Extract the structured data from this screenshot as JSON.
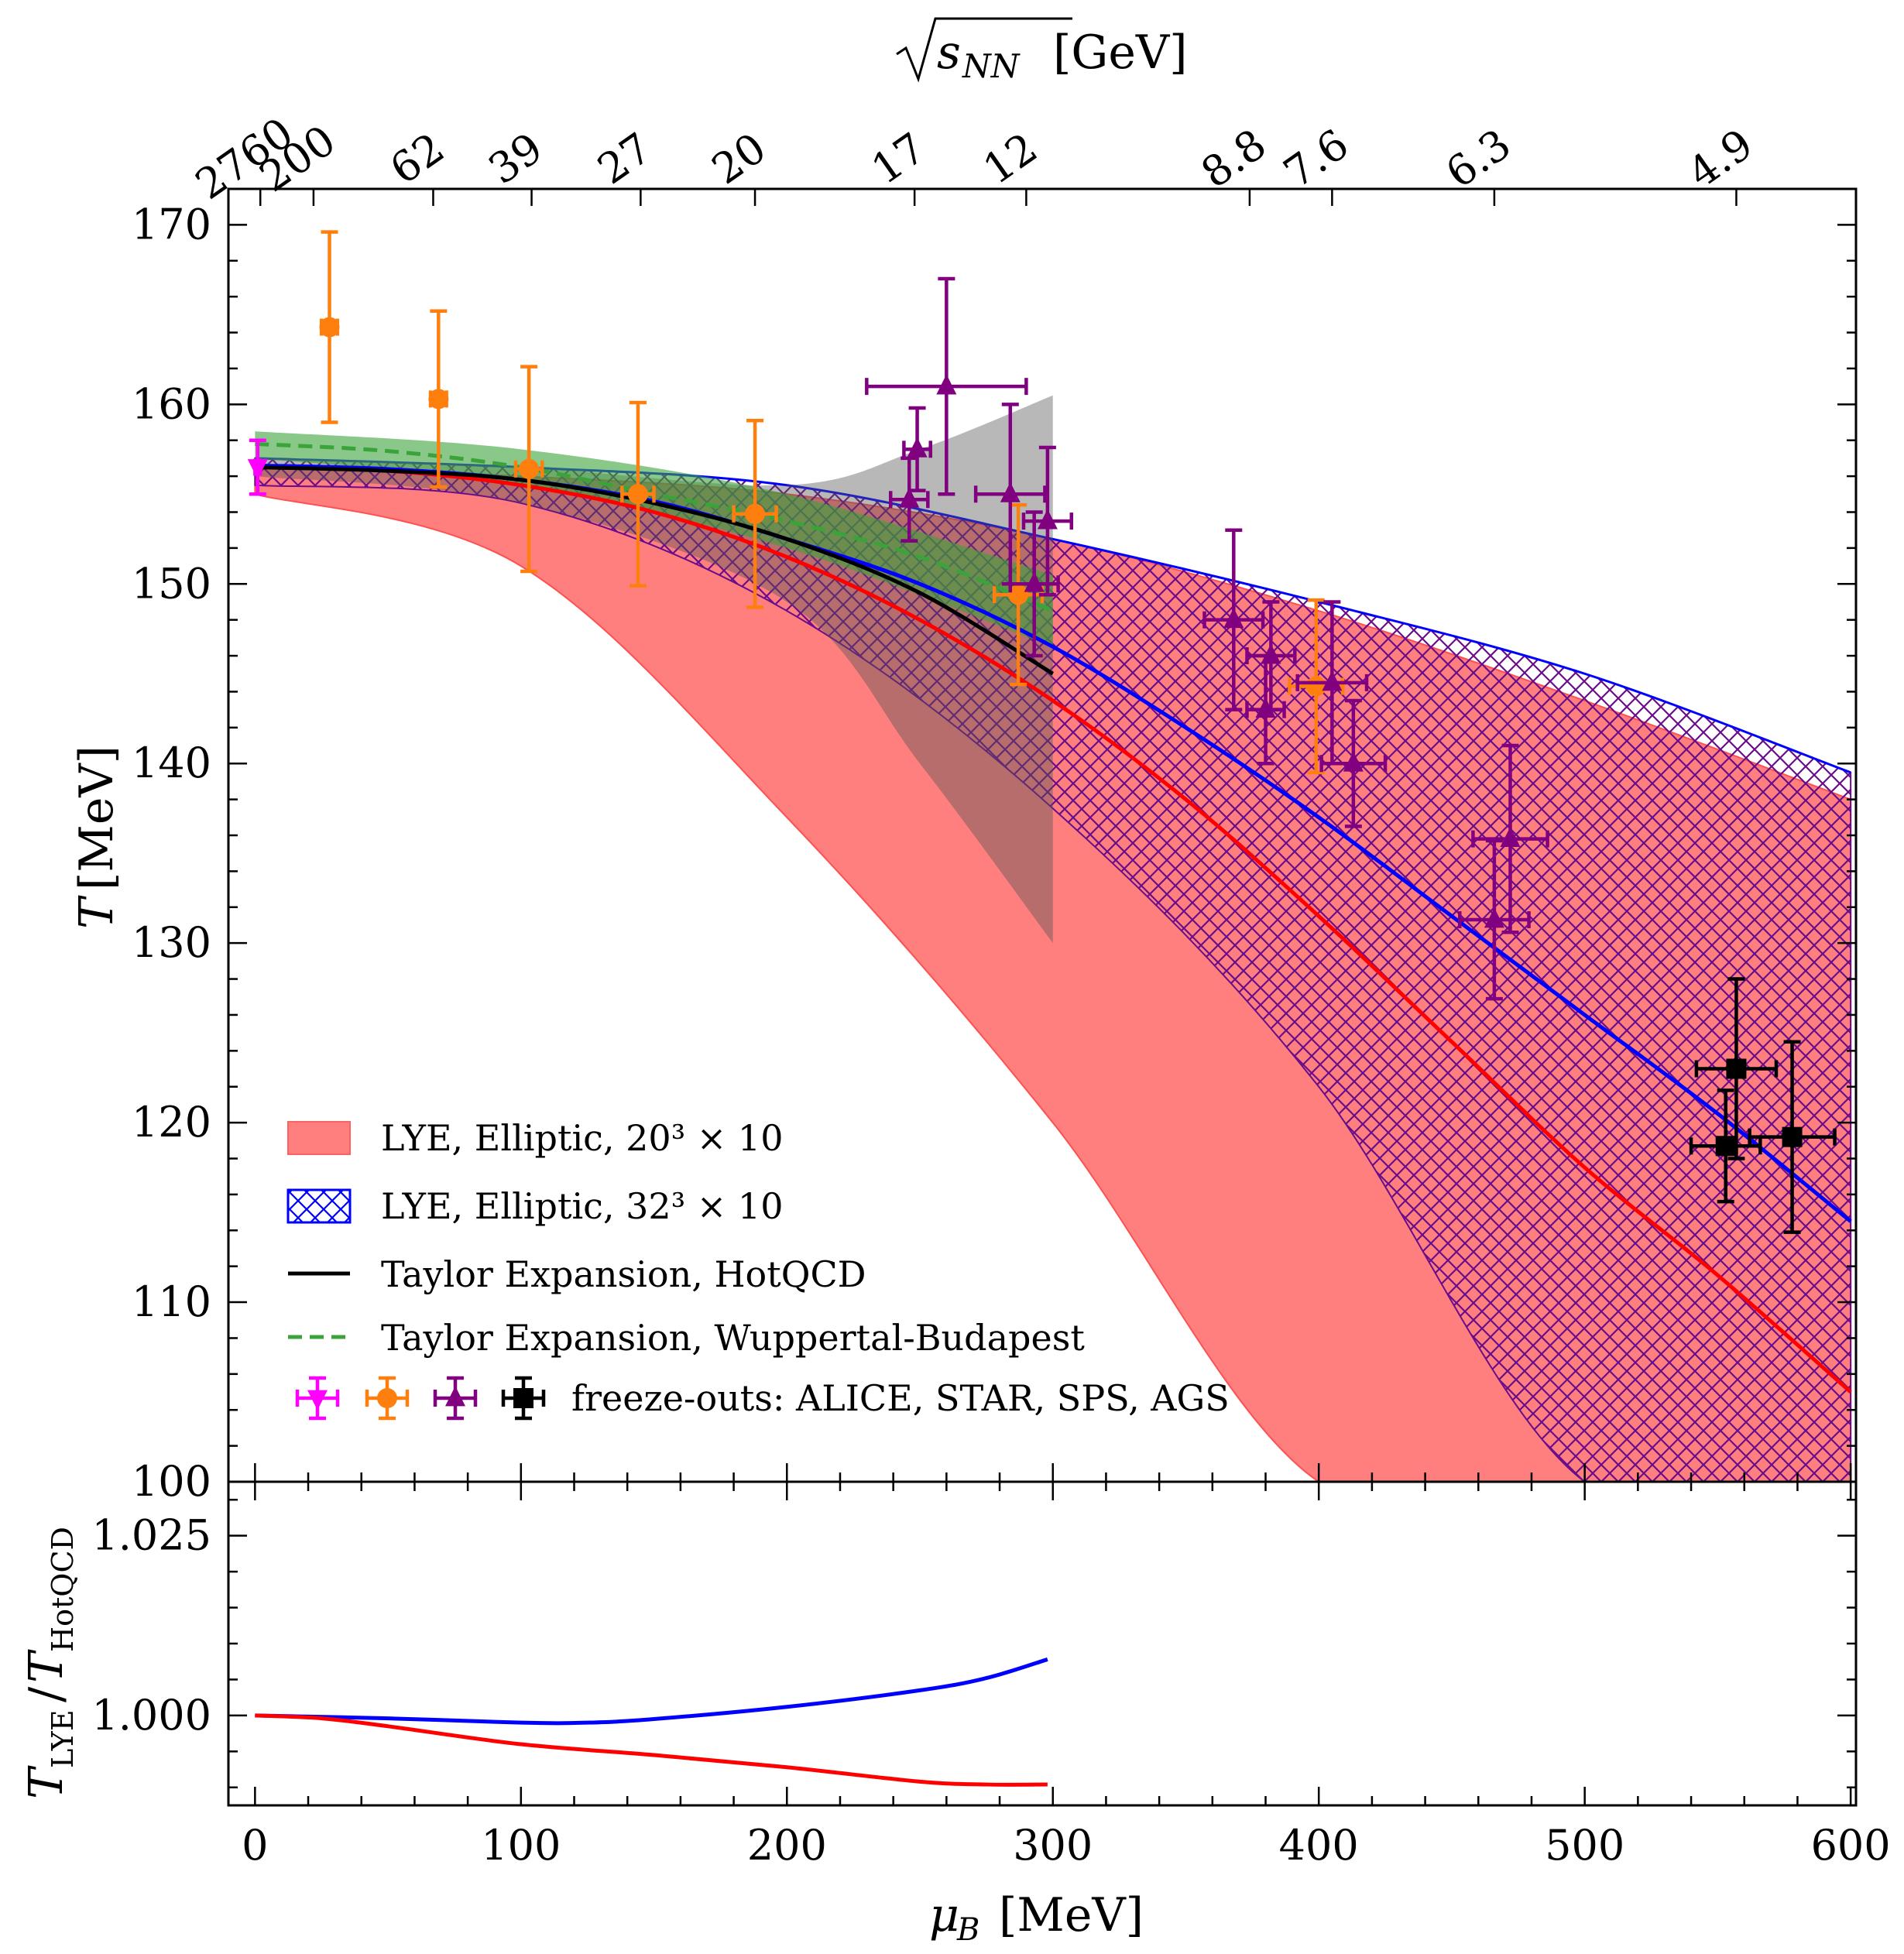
{
  "chart_data": [
    {
      "type": "line",
      "panel": "main",
      "xlabel": "μB [MeV]",
      "ylabel": "T [MeV]",
      "top_axis_label": "√sNN [GeV]",
      "xlim": [
        -10,
        602
      ],
      "ylim": [
        100,
        172
      ],
      "x_ticks": [
        0,
        100,
        200,
        300,
        400,
        500,
        600
      ],
      "y_ticks": [
        100,
        110,
        120,
        130,
        140,
        150,
        160,
        170
      ],
      "top_ticks": [
        {
          "label": "2760",
          "mu": 2
        },
        {
          "label": "200",
          "mu": 22
        },
        {
          "label": "62",
          "mu": 67
        },
        {
          "label": "39",
          "mu": 104
        },
        {
          "label": "27",
          "mu": 145
        },
        {
          "label": "20",
          "mu": 188
        },
        {
          "label": "17",
          "mu": 248
        },
        {
          "label": "12",
          "mu": 290
        },
        {
          "label": "8.8",
          "mu": 374
        },
        {
          "label": "7.6",
          "mu": 405
        },
        {
          "label": "6.3",
          "mu": 466
        },
        {
          "label": "4.9",
          "mu": 557
        }
      ],
      "legend": [
        "LYE, Elliptic, 20³ × 10",
        "LYE, Elliptic, 32³ × 10",
        "Taylor Expansion, HotQCD",
        "Taylor Expansion, Wuppertal-Budapest",
        "freeze-outs: ALICE, STAR, SPS, AGS"
      ],
      "bands": [
        {
          "name": "LYE, Elliptic, 20³ × 10",
          "color": "#ff7f7f",
          "x": [
            0,
            100,
            200,
            300,
            400,
            500,
            600
          ],
          "upper": [
            156.5,
            156.0,
            155.0,
            152.5,
            148.5,
            143.5,
            138.0
          ],
          "lower": [
            155.0,
            151.0,
            137.0,
            120.0,
            100.0,
            100.0,
            100.0
          ]
        },
        {
          "name": "LYE, Elliptic, 32³ × 10",
          "color": "#0000ff",
          "x": [
            0,
            100,
            200,
            300,
            400,
            500,
            600
          ],
          "upper": [
            157.0,
            156.5,
            155.5,
            152.5,
            149.0,
            145.0,
            139.5
          ],
          "lower": [
            155.5,
            154.5,
            148.5,
            137.5,
            122.0,
            100.0,
            100.0
          ]
        },
        {
          "name": "HotQCD band",
          "color": "#888888",
          "x": [
            0,
            100,
            200,
            250,
            300
          ],
          "upper": [
            157.0,
            156.5,
            155.5,
            157.5,
            160.5
          ],
          "lower": [
            156.0,
            154.5,
            149.0,
            140.0,
            130.0
          ]
        },
        {
          "name": "Wuppertal-Budapest band",
          "color": "#3aa33a",
          "x": [
            0,
            100,
            200,
            300
          ],
          "upper": [
            158.5,
            157.5,
            155.0,
            150.5
          ],
          "lower": [
            157.0,
            155.5,
            152.0,
            146.5
          ]
        }
      ],
      "series": [
        {
          "name": "LYE 20³×10 central",
          "color": "#ff0000",
          "x": [
            0,
            50,
            100,
            150,
            200,
            250,
            300,
            350,
            400,
            450,
            500,
            550,
            600
          ],
          "y": [
            156.5,
            156.3,
            155.5,
            154.0,
            151.5,
            148.0,
            143.5,
            138.0,
            131.5,
            124.5,
            117.5,
            111.5,
            105.0
          ]
        },
        {
          "name": "LYE 32³×10 central",
          "color": "#0000ff",
          "x": [
            0,
            50,
            100,
            150,
            200,
            250,
            300,
            350,
            400,
            450,
            500,
            550,
            600
          ],
          "y": [
            156.6,
            156.4,
            155.8,
            154.6,
            152.5,
            150.0,
            146.5,
            142.0,
            137.0,
            131.5,
            126.0,
            120.5,
            114.5
          ]
        },
        {
          "name": "Taylor Expansion, HotQCD",
          "color": "#000000",
          "x": [
            0,
            50,
            100,
            150,
            200,
            250,
            300
          ],
          "y": [
            156.5,
            156.3,
            155.8,
            154.5,
            152.5,
            149.5,
            145.0
          ]
        },
        {
          "name": "Taylor Expansion, Wuppertal-Budapest",
          "color": "#3aa33a",
          "dashed": true,
          "x": [
            0,
            50,
            100,
            150,
            200,
            250,
            300
          ],
          "y": [
            157.8,
            157.4,
            156.5,
            155.0,
            153.5,
            151.5,
            148.5
          ]
        }
      ],
      "points": [
        {
          "set": "ALICE",
          "marker": "down-triangle",
          "color": "#ff00ff",
          "x": 1,
          "y": 156.5,
          "xerr": 1,
          "yerr": 1.5
        },
        {
          "set": "STAR",
          "marker": "circle",
          "color": "#ff7f0e",
          "x": 28,
          "y": 164.3,
          "xerr": 3,
          "yerr": 5.3
        },
        {
          "set": "STAR",
          "marker": "circle",
          "color": "#ff7f0e",
          "x": 69,
          "y": 160.3,
          "xerr": 3,
          "yerr": 4.9
        },
        {
          "set": "STAR",
          "marker": "circle",
          "color": "#ff7f0e",
          "x": 103,
          "y": 156.4,
          "xerr": 5,
          "yerr": 5.7
        },
        {
          "set": "STAR",
          "marker": "circle",
          "color": "#ff7f0e",
          "x": 144,
          "y": 155.0,
          "xerr": 6,
          "yerr": 5.1
        },
        {
          "set": "STAR",
          "marker": "circle",
          "color": "#ff7f0e",
          "x": 188,
          "y": 153.9,
          "xerr": 8,
          "yerr": 5.2
        },
        {
          "set": "STAR",
          "marker": "circle",
          "color": "#ff7f0e",
          "x": 287,
          "y": 149.4,
          "xerr": 9,
          "yerr": 5.0
        },
        {
          "set": "STAR",
          "marker": "circle",
          "color": "#ff7f0e",
          "x": 399,
          "y": 144.3,
          "xerr": 10,
          "yerr": 4.8
        },
        {
          "set": "SPS",
          "marker": "triangle",
          "color": "#800080",
          "x": 249,
          "y": 157.5,
          "xerr": 5,
          "yerr": 2.3
        },
        {
          "set": "SPS",
          "marker": "triangle",
          "color": "#800080",
          "x": 260,
          "y": 161.0,
          "xerr": 30,
          "yerr": 6.0
        },
        {
          "set": "SPS",
          "marker": "triangle",
          "color": "#800080",
          "x": 246,
          "y": 154.7,
          "xerr": 7,
          "yerr": 2.3
        },
        {
          "set": "SPS",
          "marker": "triangle",
          "color": "#800080",
          "x": 284,
          "y": 155.0,
          "xerr": 13,
          "yerr": 5.0
        },
        {
          "set": "SPS",
          "marker": "triangle",
          "color": "#800080",
          "x": 298,
          "y": 153.5,
          "xerr": 9,
          "yerr": 4.1
        },
        {
          "set": "SPS",
          "marker": "triangle",
          "color": "#800080",
          "x": 293,
          "y": 150.0,
          "xerr": 9,
          "yerr": 4.0
        },
        {
          "set": "SPS",
          "marker": "triangle",
          "color": "#800080",
          "x": 368,
          "y": 148.0,
          "xerr": 11,
          "yerr": 5.0
        },
        {
          "set": "SPS",
          "marker": "triangle",
          "color": "#800080",
          "x": 382,
          "y": 146.0,
          "xerr": 9,
          "yerr": 3.0
        },
        {
          "set": "SPS",
          "marker": "triangle",
          "color": "#800080",
          "x": 380,
          "y": 143.0,
          "xerr": 7,
          "yerr": 3.0
        },
        {
          "set": "SPS",
          "marker": "triangle",
          "color": "#800080",
          "x": 405,
          "y": 144.5,
          "xerr": 13,
          "yerr": 4.5
        },
        {
          "set": "SPS",
          "marker": "triangle",
          "color": "#800080",
          "x": 413,
          "y": 140.0,
          "xerr": 12,
          "yerr": 3.5
        },
        {
          "set": "SPS",
          "marker": "triangle",
          "color": "#800080",
          "x": 472,
          "y": 135.8,
          "xerr": 14,
          "yerr": 5.2
        },
        {
          "set": "SPS",
          "marker": "triangle",
          "color": "#800080",
          "x": 466,
          "y": 131.3,
          "xerr": 13,
          "yerr": 4.4
        },
        {
          "set": "AGS",
          "marker": "square",
          "color": "#000000",
          "x": 557,
          "y": 123.0,
          "xerr": 15,
          "yerr": 5.0
        },
        {
          "set": "AGS",
          "marker": "square",
          "color": "#000000",
          "x": 553,
          "y": 118.7,
          "xerr": 13,
          "yerr": 3.1
        },
        {
          "set": "AGS",
          "marker": "square",
          "color": "#000000",
          "x": 578,
          "y": 119.2,
          "xerr": 16,
          "yerr": 5.3
        }
      ]
    },
    {
      "type": "line",
      "panel": "ratio",
      "xlabel": "μB [MeV]",
      "ylabel": "TLYE/THotQCD",
      "xlim": [
        -10,
        602
      ],
      "ylim": [
        0.9875,
        1.0325
      ],
      "y_ticks": [
        1.0,
        1.025
      ],
      "y_tick_labels": [
        "1.000",
        "1.025"
      ],
      "series": [
        {
          "name": "32³×10 / HotQCD",
          "color": "#0000ff",
          "x": [
            0,
            50,
            100,
            125,
            150,
            200,
            250,
            275,
            298
          ],
          "y": [
            1.0,
            0.9996,
            0.999,
            0.999,
            0.9995,
            1.0012,
            1.0035,
            1.0052,
            1.0078
          ]
        },
        {
          "name": "20³×10 / HotQCD",
          "color": "#ff0000",
          "x": [
            0,
            25,
            50,
            100,
            150,
            200,
            250,
            275,
            298
          ],
          "y": [
            1.0,
            0.9996,
            0.9985,
            0.996,
            0.9945,
            0.9928,
            0.9908,
            0.9904,
            0.9904
          ]
        }
      ]
    }
  ]
}
